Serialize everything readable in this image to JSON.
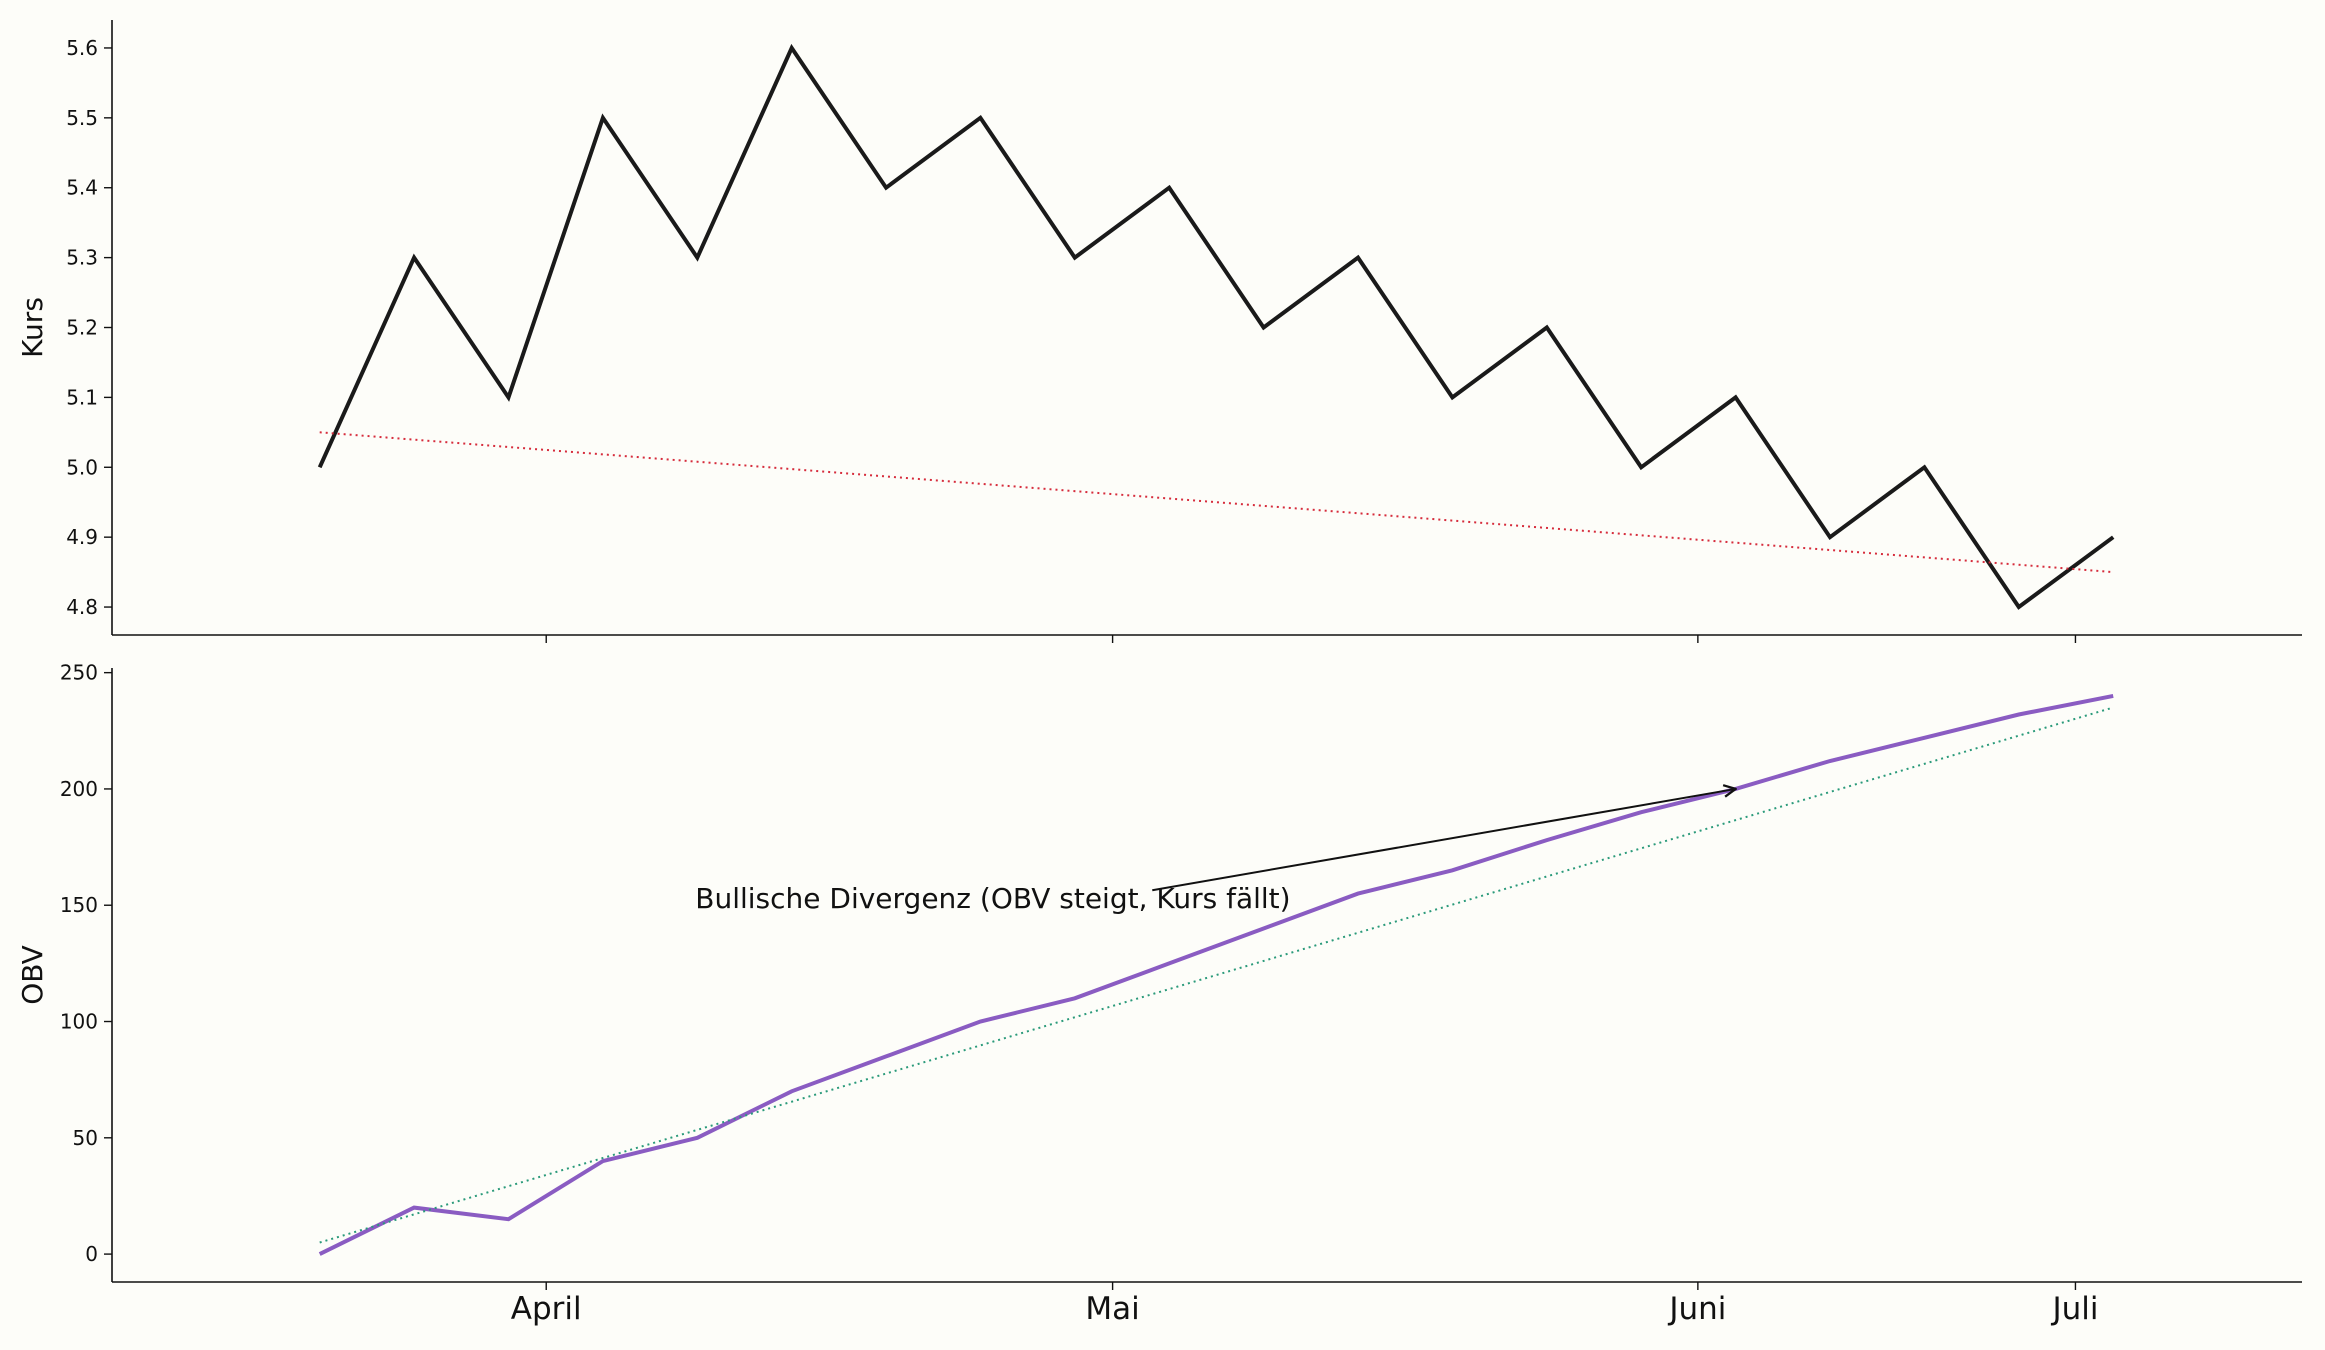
{
  "chart_data": [
    {
      "type": "line",
      "ylabel": "Kurs",
      "ylim": [
        4.76,
        5.64
      ],
      "y_ticks": [
        "4.8",
        "4.9",
        "5.0",
        "5.1",
        "5.2",
        "5.3",
        "5.4",
        "5.5",
        "5.6"
      ],
      "x": [
        "2024-03-20",
        "2024-03-25",
        "2024-03-30",
        "2024-04-04",
        "2024-04-09",
        "2024-04-14",
        "2024-04-19",
        "2024-04-24",
        "2024-04-29",
        "2024-05-04",
        "2024-05-09",
        "2024-05-14",
        "2024-05-19",
        "2024-05-24",
        "2024-05-29",
        "2024-06-03",
        "2024-06-08",
        "2024-06-13",
        "2024-06-18",
        "2024-06-23"
      ],
      "series": [
        {
          "values": [
            5.0,
            5.3,
            5.1,
            5.5,
            5.3,
            5.6,
            5.4,
            5.5,
            5.3,
            5.4,
            5.2,
            5.3,
            5.1,
            5.2,
            5.0,
            5.1,
            4.9,
            5.0,
            4.8,
            4.9
          ],
          "color": "#1a1a1a",
          "style": "solid"
        },
        {
          "values": [
            5.05,
            4.85
          ],
          "x": [
            "2024-03-20",
            "2024-06-23"
          ],
          "color": "#d62c3c",
          "style": "dotted"
        }
      ],
      "grid": false
    },
    {
      "type": "line",
      "ylabel": "OBV",
      "ylim": [
        -12,
        252
      ],
      "y_ticks": [
        "0",
        "50",
        "100",
        "150",
        "200",
        "250"
      ],
      "x": [
        "2024-03-20",
        "2024-03-25",
        "2024-03-30",
        "2024-04-04",
        "2024-04-09",
        "2024-04-14",
        "2024-04-19",
        "2024-04-24",
        "2024-04-29",
        "2024-05-04",
        "2024-05-09",
        "2024-05-14",
        "2024-05-19",
        "2024-05-24",
        "2024-05-29",
        "2024-06-03",
        "2024-06-08",
        "2024-06-13",
        "2024-06-18",
        "2024-06-23"
      ],
      "series": [
        {
          "values": [
            0,
            20,
            15,
            40,
            50,
            70,
            85,
            100,
            110,
            125,
            140,
            155,
            165,
            178,
            190,
            200,
            212,
            222,
            232,
            240
          ],
          "color": "#8a5cc2",
          "style": "solid"
        },
        {
          "values": [
            5,
            235
          ],
          "x": [
            "2024-03-20",
            "2024-06-23"
          ],
          "color": "#2a9a7a",
          "style": "dotted"
        }
      ],
      "annotation": {
        "text": "Bullische Divergenz (OBV steigt, Kurs fällt)",
        "text_x": "2024-04-09",
        "text_y": 150,
        "arrow_to_x": "2024-06-03",
        "arrow_to_y": 200
      },
      "x_ticks": [
        "April",
        "Mai",
        "Juni",
        "Juli"
      ],
      "x_tick_dates": [
        "2024-04-01",
        "2024-05-01",
        "2024-06-01",
        "2024-06-21"
      ],
      "grid": false
    }
  ]
}
